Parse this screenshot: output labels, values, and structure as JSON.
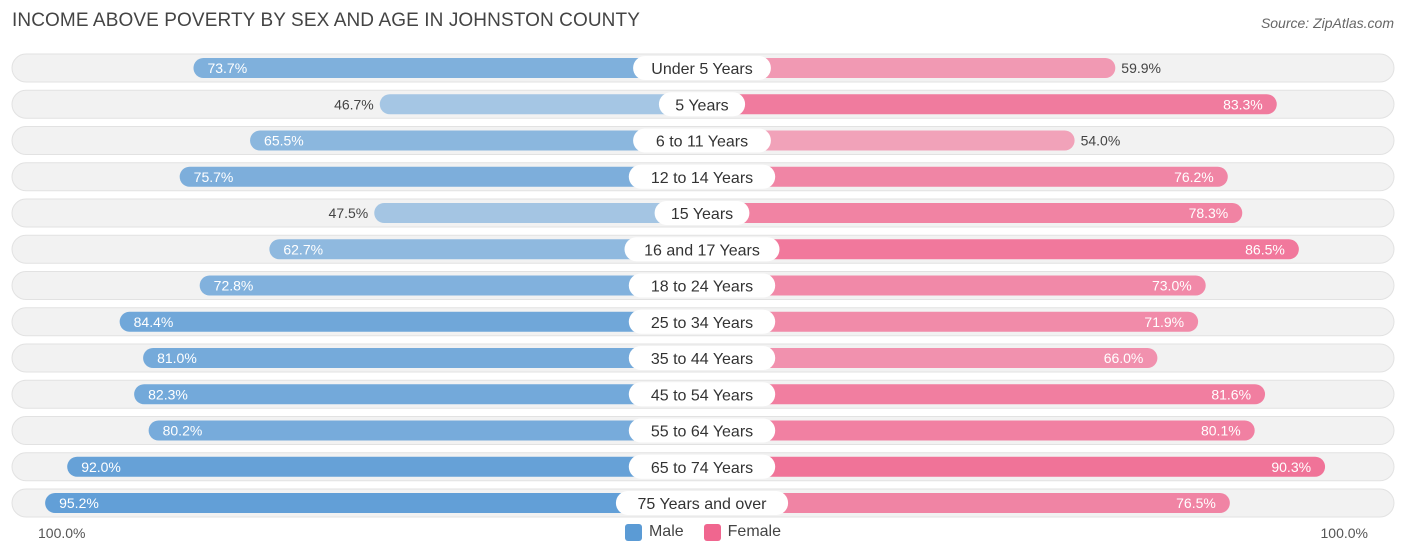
{
  "title": "INCOME ABOVE POVERTY BY SEX AND AGE IN JOHNSTON COUNTY",
  "source": "Source: ZipAtlas.com",
  "axis": {
    "left_label": "100.0%",
    "right_label": "100.0%"
  },
  "legend": [
    {
      "label": "Male",
      "color": "#5b9bd5"
    },
    {
      "label": "Female",
      "color": "#f0668f"
    }
  ],
  "colors": {
    "male": "#5b9bd5",
    "female": "#f0668f",
    "track": "#efefef"
  },
  "chart_data": {
    "type": "bar",
    "orientation": "horizontal-diverging",
    "title": "INCOME ABOVE POVERTY BY SEX AND AGE IN JOHNSTON COUNTY",
    "xlim": [
      0,
      100
    ],
    "categories": [
      "Under 5 Years",
      "5 Years",
      "6 to 11 Years",
      "12 to 14 Years",
      "15 Years",
      "16 and 17 Years",
      "18 to 24 Years",
      "25 to 34 Years",
      "35 to 44 Years",
      "45 to 54 Years",
      "55 to 64 Years",
      "65 to 74 Years",
      "75 Years and over"
    ],
    "series": [
      {
        "name": "Male",
        "values": [
          73.7,
          46.7,
          65.5,
          75.7,
          47.5,
          62.7,
          72.8,
          84.4,
          81.0,
          82.3,
          80.2,
          92.0,
          95.2
        ],
        "labels": [
          "73.7%",
          "46.7%",
          "65.5%",
          "75.7%",
          "47.5%",
          "62.7%",
          "72.8%",
          "84.4%",
          "81.0%",
          "82.3%",
          "80.2%",
          "92.0%",
          "95.2%"
        ]
      },
      {
        "name": "Female",
        "values": [
          59.9,
          83.3,
          54.0,
          76.2,
          78.3,
          86.5,
          73.0,
          71.9,
          66.0,
          81.6,
          80.1,
          90.3,
          76.5
        ],
        "labels": [
          "59.9%",
          "83.3%",
          "54.0%",
          "76.2%",
          "78.3%",
          "86.5%",
          "73.0%",
          "71.9%",
          "66.0%",
          "81.6%",
          "80.1%",
          "90.3%",
          "76.5%"
        ]
      }
    ],
    "legend_position": "bottom-center"
  }
}
